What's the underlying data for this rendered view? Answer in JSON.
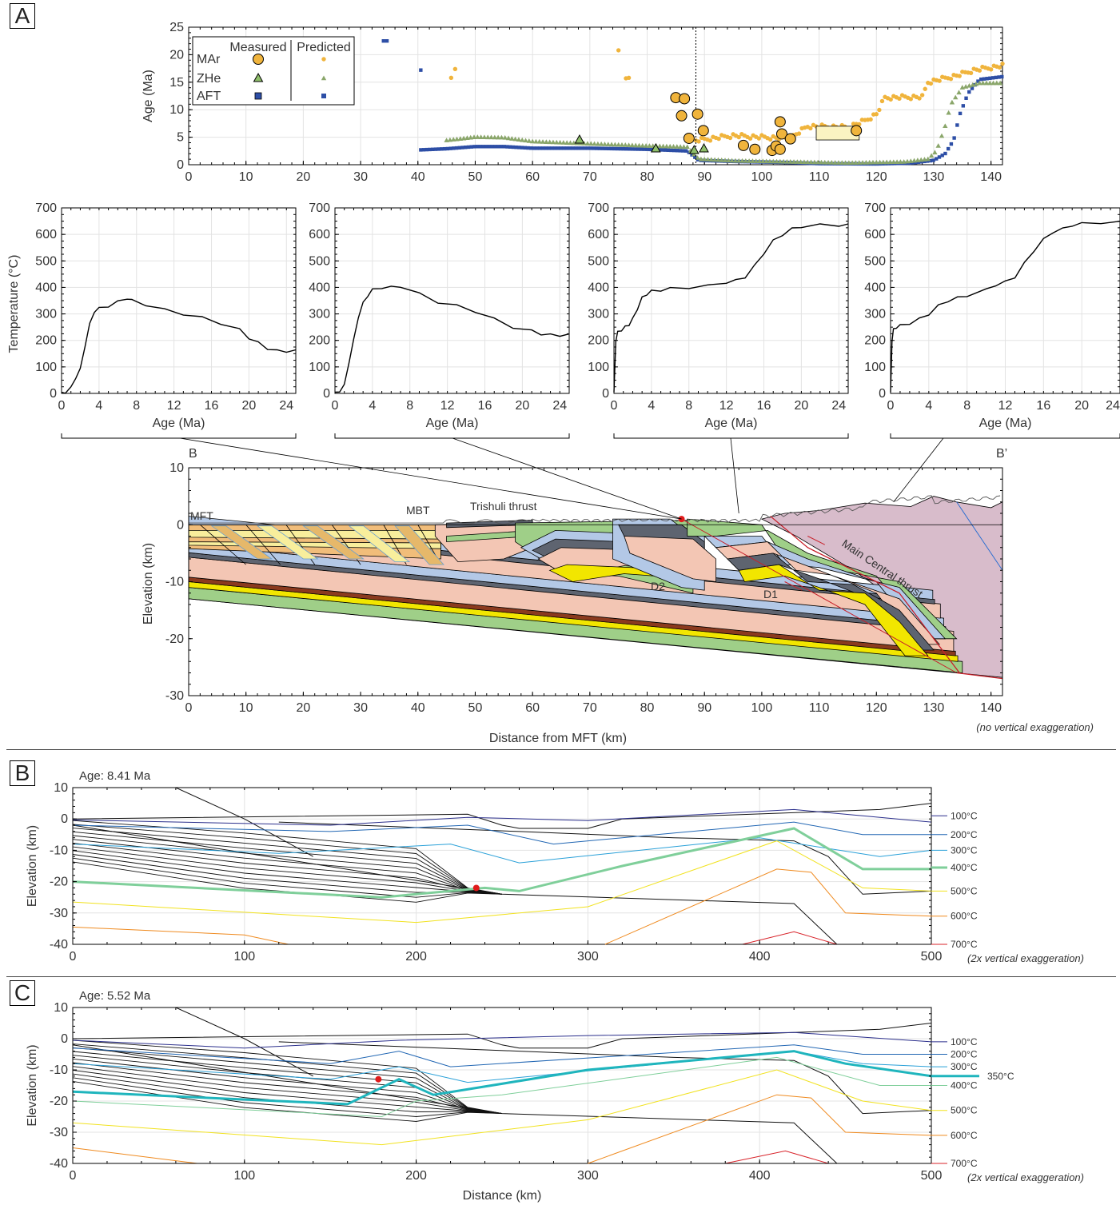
{
  "panels": {
    "a": "A",
    "b": "B",
    "c": "C"
  },
  "colors": {
    "mar": "#f0b43c",
    "zhe": "#8aa66a",
    "aft": "#2d4ea6",
    "sand": "#f1bd7a",
    "yellowpale": "#f8ee9c",
    "pink": "#f3c6b4",
    "blue": "#b3c8e6",
    "green": "#9fcf88",
    "brown": "#8b3a1e",
    "gray": "#5e6470",
    "yellow": "#f2e600",
    "mauve": "#d8bccb"
  },
  "chart_data": [
    {
      "type": "scatter",
      "id": "age-profile",
      "ylabel": "Age (Ma)",
      "xlim": [
        0,
        142
      ],
      "ylim": [
        0,
        25
      ],
      "xticks": [
        0,
        10,
        20,
        30,
        40,
        50,
        60,
        70,
        80,
        90,
        100,
        110,
        120,
        130,
        140
      ],
      "yticks": [
        0,
        5,
        10,
        15,
        20,
        25
      ],
      "grid": true,
      "legend": {
        "placement": "top-left",
        "header_measured": "Measured",
        "header_predicted": "Predicted",
        "entries": [
          {
            "name": "MAr",
            "marker": "circle",
            "color": "#f0b43c"
          },
          {
            "name": "ZHe",
            "marker": "triangle",
            "color": "#8aa66a"
          },
          {
            "name": "AFT",
            "marker": "square",
            "color": "#2d4ea6"
          }
        ]
      },
      "vline_x": 88.5,
      "measured_mar": [
        [
          85,
          12.2
        ],
        [
          86.5,
          12
        ],
        [
          86,
          8.9
        ],
        [
          87.3,
          4.8
        ],
        [
          88.8,
          9.2
        ],
        [
          89.8,
          6.2
        ],
        [
          96.8,
          3.5
        ],
        [
          98.8,
          2.8
        ],
        [
          101.8,
          2.6
        ],
        [
          102.5,
          3.4
        ],
        [
          103.2,
          2.8
        ],
        [
          103.2,
          7.8
        ],
        [
          103.5,
          5.6
        ],
        [
          105,
          4.7
        ],
        [
          116.5,
          6.2
        ]
      ],
      "measured_zhe": [
        [
          68.2,
          4.5
        ],
        [
          81.5,
          2.9
        ],
        [
          88.2,
          2.6
        ],
        [
          89.9,
          2.9
        ]
      ],
      "mar_box": {
        "x": [
          109.5,
          117
        ],
        "y": [
          4.5,
          7
        ]
      },
      "predicted_mar_isolated": [
        [
          45.8,
          15.8
        ],
        [
          46.5,
          17.4
        ],
        [
          75,
          20.8
        ],
        [
          76.3,
          15.7
        ],
        [
          76.8,
          15.8
        ]
      ],
      "predicted_aft_isolated": [
        [
          34,
          22.5
        ],
        [
          34.6,
          22.5
        ],
        [
          40.5,
          17.2
        ]
      ]
    },
    {
      "type": "line",
      "id": "tt-1",
      "xlabel": "Age (Ma)",
      "ylabel": "Temperature (°C)",
      "xlim": [
        0,
        25
      ],
      "ylim": [
        0,
        700
      ],
      "xticks": [
        0,
        4,
        8,
        12,
        16,
        20,
        24
      ],
      "yticks": [
        0,
        100,
        200,
        300,
        400,
        500,
        600,
        700
      ],
      "x": [
        0,
        0.4,
        1,
        1.5,
        2,
        2.5,
        3,
        3.5,
        4,
        5,
        6,
        7,
        7.5,
        9,
        11,
        13,
        15,
        17,
        19,
        20,
        21,
        22,
        23,
        24,
        25
      ],
      "y": [
        0,
        5,
        20,
        60,
        90,
        180,
        260,
        310,
        320,
        330,
        345,
        360,
        350,
        335,
        315,
        300,
        285,
        265,
        240,
        210,
        190,
        170,
        160,
        160,
        160
      ]
    },
    {
      "type": "line",
      "id": "tt-2",
      "xlabel": "Age (Ma)",
      "xlim": [
        0,
        25
      ],
      "ylim": [
        0,
        700
      ],
      "xticks": [
        0,
        4,
        8,
        12,
        16,
        20,
        24
      ],
      "yticks": [
        0,
        100,
        200,
        300,
        400,
        500,
        600,
        700
      ],
      "x": [
        0,
        0.5,
        1,
        1.5,
        2,
        2.5,
        3,
        3.5,
        4,
        5,
        6,
        7,
        9,
        11,
        13,
        15,
        17,
        19,
        21,
        22,
        23,
        24,
        25
      ],
      "y": [
        0,
        10,
        30,
        120,
        200,
        290,
        340,
        370,
        390,
        400,
        400,
        405,
        375,
        345,
        330,
        310,
        280,
        250,
        235,
        225,
        220,
        220,
        220
      ]
    },
    {
      "type": "line",
      "id": "tt-3",
      "xlabel": "Age (Ma)",
      "xlim": [
        0,
        25
      ],
      "ylim": [
        0,
        700
      ],
      "xticks": [
        0,
        4,
        8,
        12,
        16,
        20,
        24
      ],
      "yticks": [
        0,
        100,
        200,
        300,
        400,
        500,
        600,
        700
      ],
      "x": [
        0,
        0.2,
        0.4,
        0.8,
        1.2,
        1.6,
        2,
        2.5,
        3,
        3.5,
        4,
        5,
        6,
        8,
        10,
        12,
        13,
        14,
        15,
        16,
        17,
        18,
        19,
        20,
        22,
        24,
        25
      ],
      "y": [
        0,
        200,
        230,
        240,
        250,
        260,
        280,
        320,
        360,
        375,
        385,
        390,
        395,
        400,
        405,
        420,
        425,
        440,
        480,
        530,
        575,
        600,
        620,
        630,
        635,
        635,
        635
      ]
    },
    {
      "type": "line",
      "id": "tt-4",
      "xlabel": "Age (Ma)",
      "xlim": [
        0,
        24
      ],
      "ylim": [
        0,
        700
      ],
      "xticks": [
        0,
        4,
        8,
        12,
        16,
        20,
        "24"
      ],
      "yticks": [
        0,
        100,
        200,
        300,
        400,
        500,
        600,
        700
      ],
      "x": [
        0,
        0.15,
        0.3,
        0.6,
        1,
        2,
        3,
        4,
        5,
        6,
        7,
        8,
        10,
        11,
        12,
        13,
        14,
        15,
        16,
        17,
        18,
        19,
        20,
        22,
        24
      ],
      "y": [
        0,
        200,
        240,
        250,
        255,
        265,
        280,
        300,
        330,
        350,
        360,
        370,
        390,
        410,
        420,
        440,
        490,
        540,
        580,
        610,
        620,
        635,
        640,
        645,
        645
      ]
    },
    {
      "type": "line",
      "id": "cross-section",
      "xlabel": "Distance from MFT (km)",
      "ylabel": "Elevation (km)",
      "xlim": [
        0,
        142
      ],
      "ylim": [
        -30,
        10
      ],
      "xticks": [
        0,
        10,
        20,
        30,
        40,
        50,
        60,
        70,
        80,
        90,
        100,
        110,
        120,
        130,
        140
      ],
      "yticks": [
        10,
        0,
        -10,
        -20,
        -30
      ],
      "section_ends": [
        "B",
        "B’"
      ],
      "labels": [
        "MFT",
        "MBT",
        "Trishuli thrust",
        "Main Central thrust",
        "D2",
        "D1"
      ],
      "note": "(no vertical exaggeration)",
      "sample_point": [
        86,
        1
      ]
    },
    {
      "type": "line",
      "id": "thermal-b",
      "title": "Age: 8.41 Ma",
      "ylabel": "Elevation (km)",
      "xlim": [
        0,
        500
      ],
      "ylim": [
        -40,
        10
      ],
      "xticks": [
        0,
        100,
        200,
        300,
        400,
        500
      ],
      "yticks": [
        10,
        0,
        -10,
        -20,
        -30,
        -40
      ],
      "isotherms": [
        "100°C",
        "200°C",
        "300°C",
        "400°C",
        "500°C",
        "600°C",
        "700°C"
      ],
      "note": "(2x vertical exaggeration)",
      "sample_point": [
        235,
        -22
      ]
    },
    {
      "type": "line",
      "id": "thermal-c",
      "title": "Age: 5.52 Ma",
      "xlabel": "Distance (km)",
      "ylabel": "Elevation (km)",
      "xlim": [
        0,
        500
      ],
      "ylim": [
        -40,
        10
      ],
      "xticks": [
        0,
        100,
        200,
        300,
        400,
        500
      ],
      "yticks": [
        10,
        0,
        -10,
        -20,
        -30,
        -40
      ],
      "isotherms": [
        "100°C",
        "200°C",
        "300°C",
        "350°C",
        "400°C",
        "500°C",
        "600°C",
        "700°C"
      ],
      "note": "(2x vertical exaggeration)",
      "sample_point": [
        178,
        -13
      ]
    }
  ]
}
